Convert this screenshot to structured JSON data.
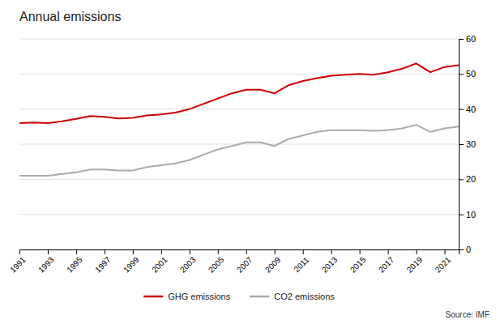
{
  "chart_data": {
    "type": "line",
    "title": "Annual emissions",
    "annotations": [
      "Source: IMF"
    ],
    "x": [
      1991,
      1992,
      1993,
      1994,
      1995,
      1996,
      1997,
      1998,
      1999,
      2000,
      2001,
      2002,
      2003,
      2004,
      2005,
      2006,
      2007,
      2008,
      2009,
      2010,
      2011,
      2012,
      2013,
      2014,
      2015,
      2016,
      2017,
      2018,
      2019,
      2020,
      2021,
      2022
    ],
    "series": [
      {
        "name": "GHG emissions",
        "color": "#cc0000",
        "values": [
          36.0,
          36.2,
          36.0,
          36.5,
          37.2,
          38.0,
          37.8,
          37.3,
          37.5,
          38.2,
          38.5,
          39.0,
          40.0,
          41.5,
          43.0,
          44.5,
          45.5,
          45.5,
          44.5,
          46.8,
          48.0,
          48.8,
          49.5,
          49.8,
          50.0,
          49.8,
          50.5,
          51.5,
          53.0,
          50.5,
          52.0,
          52.5
        ]
      },
      {
        "name": "CO2 emissions",
        "color": "#aaaaaa",
        "values": [
          21.0,
          21.0,
          21.0,
          21.5,
          22.0,
          22.8,
          22.8,
          22.5,
          22.5,
          23.5,
          24.0,
          24.5,
          25.5,
          27.0,
          28.5,
          29.5,
          30.5,
          30.5,
          29.5,
          31.5,
          32.5,
          33.5,
          34.0,
          34.0,
          34.0,
          33.8,
          34.0,
          34.5,
          35.5,
          33.5,
          34.5,
          35.0
        ]
      }
    ],
    "xlim": [
      1991,
      2022
    ],
    "xticks": [
      1991,
      1993,
      1995,
      1997,
      1999,
      2001,
      2003,
      2005,
      2007,
      2009,
      2011,
      2013,
      2015,
      2017,
      2019,
      2021
    ],
    "ylim": [
      0,
      60
    ],
    "yticks": [
      0,
      10,
      20,
      30,
      40,
      50,
      60
    ],
    "grid": true,
    "legend": "bottom"
  }
}
